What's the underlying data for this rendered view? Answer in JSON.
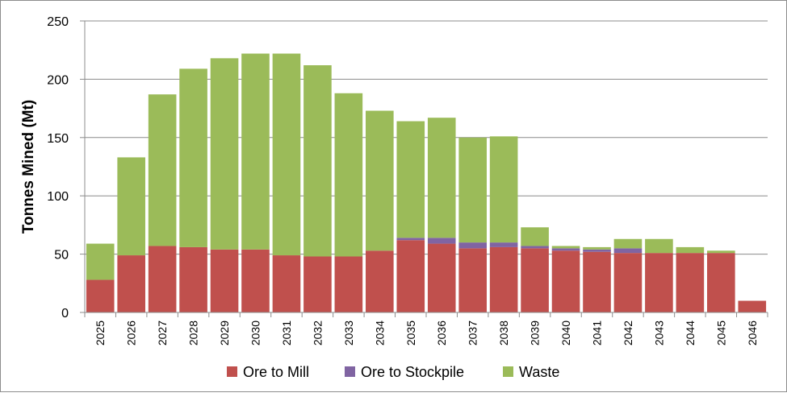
{
  "chart_data": {
    "type": "bar",
    "stacked": true,
    "title": "",
    "xlabel": "",
    "ylabel": "Tonnes Mined (Mt)",
    "ylim": [
      0,
      250
    ],
    "yticks": [
      0,
      50,
      100,
      150,
      200,
      250
    ],
    "grid": true,
    "legend_position": "bottom",
    "categories": [
      "2025",
      "2026",
      "2027",
      "2028",
      "2029",
      "2030",
      "2031",
      "2032",
      "2033",
      "2034",
      "2035",
      "2036",
      "2037",
      "2038",
      "2039",
      "2040",
      "2041",
      "2042",
      "2043",
      "2044",
      "2045",
      "2046"
    ],
    "series": [
      {
        "name": "Ore to Mill",
        "color": "#c0504d",
        "values": [
          28,
          49,
          57,
          56,
          54,
          54,
          49,
          48,
          48,
          53,
          62,
          59,
          55,
          56,
          55,
          53,
          52,
          51,
          51,
          51,
          51,
          10
        ]
      },
      {
        "name": "Ore to Stockpile",
        "color": "#8064a2",
        "values": [
          0,
          0,
          0,
          0,
          0,
          0,
          0,
          0,
          0,
          0,
          2,
          5,
          5,
          4,
          2,
          2,
          2,
          4,
          0,
          0,
          0,
          0
        ]
      },
      {
        "name": "Waste",
        "color": "#9bbb59",
        "values": [
          31,
          84,
          130,
          153,
          164,
          168,
          173,
          164,
          140,
          120,
          100,
          103,
          90,
          91,
          16,
          2,
          2,
          8,
          12,
          5,
          2,
          0
        ]
      }
    ]
  }
}
